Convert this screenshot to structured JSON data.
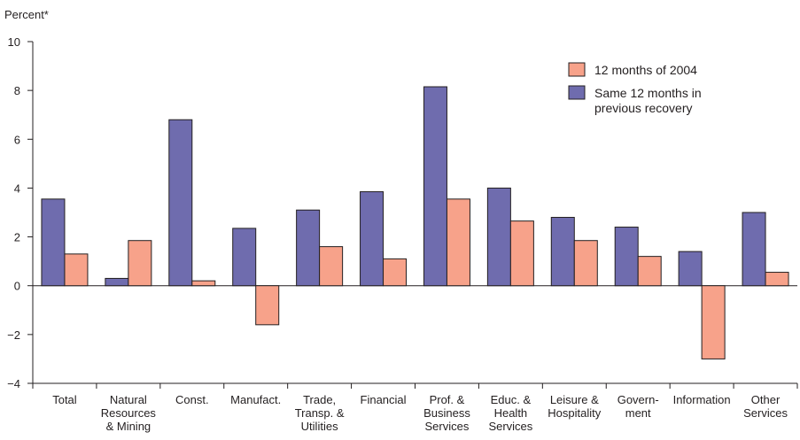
{
  "chart_data": {
    "type": "bar",
    "ylabel": "Percent*",
    "ylim": [
      -4,
      10
    ],
    "yticks": [
      "10",
      "8",
      "6",
      "4",
      "2",
      "0",
      "−2",
      "−4"
    ],
    "categories": [
      [
        "Total"
      ],
      [
        "Natural",
        "Resources",
        "& Mining"
      ],
      [
        "Const."
      ],
      [
        "Manufact."
      ],
      [
        "Trade,",
        "Transp. &",
        "Utilities"
      ],
      [
        "Financial"
      ],
      [
        "Prof. &",
        "Business",
        "Services"
      ],
      [
        "Educ. &",
        "Health",
        "Services"
      ],
      [
        "Leisure &",
        "Hospitality"
      ],
      [
        "Govern-",
        "ment"
      ],
      [
        "Information"
      ],
      [
        "Other",
        "Services"
      ]
    ],
    "series": [
      {
        "name": "Same 12 months in previous recovery",
        "legend_lines": [
          "Same 12 months in",
          "previous recovery"
        ],
        "color": "#6f6cae",
        "values": [
          3.55,
          0.3,
          6.8,
          2.35,
          3.1,
          3.85,
          8.15,
          4.0,
          2.8,
          2.4,
          1.4,
          3.0
        ]
      },
      {
        "name": "12 months of 2004",
        "legend_lines": [
          "12 months of 2004"
        ],
        "color": "#f7a28a",
        "values": [
          1.3,
          1.85,
          0.2,
          -1.6,
          1.6,
          1.1,
          3.55,
          2.65,
          1.85,
          1.2,
          -3.0,
          0.55
        ]
      }
    ],
    "legend_order": [
      1,
      0
    ],
    "legend_position": "top-right"
  }
}
